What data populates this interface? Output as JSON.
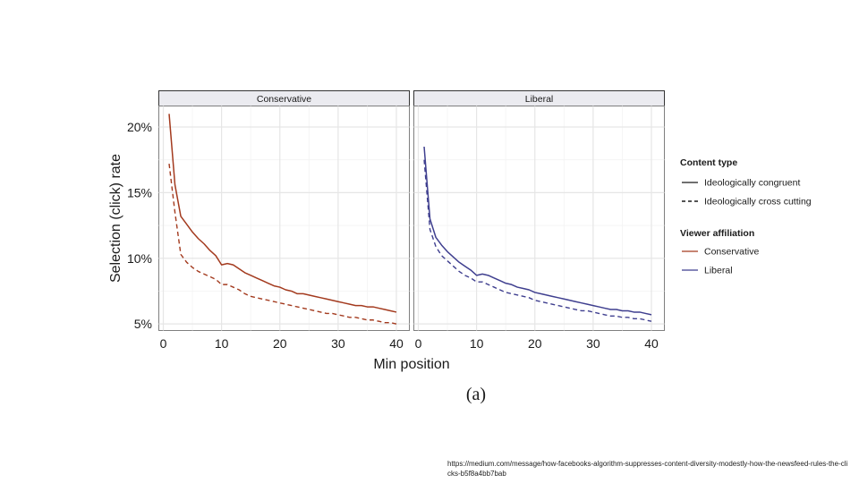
{
  "colors": {
    "conservative": "#a33a1e",
    "liberal": "#3f3f8f"
  },
  "caption": "(a)",
  "source_url": "https://medium.com/message/how-facebooks-algorithm-suppresses-content-diversity-modestly-how-the-newsfeed-rules-the-clicks-b5f8a4bb7bab",
  "chart_data": {
    "type": "line",
    "xlabel": "Min position",
    "ylabel": "Selection (click) rate",
    "xlim": [
      0,
      41
    ],
    "ylim": [
      4.5,
      21.6
    ],
    "x_ticks": [
      0,
      10,
      20,
      30,
      40
    ],
    "y_ticks": [
      5,
      10,
      15,
      20
    ],
    "y_tick_labels": [
      "5%",
      "10%",
      "15%",
      "20%"
    ],
    "grid": true,
    "legend_placement": "right",
    "legend": {
      "content_type_title": "Content type",
      "content_type_items": [
        "Ideologically congruent",
        "Ideologically cross cutting"
      ],
      "viewer_affiliation_title": "Viewer affiliation",
      "viewer_affiliation_items": [
        "Conservative",
        "Liberal"
      ]
    },
    "x": [
      1,
      2,
      3,
      4,
      5,
      6,
      7,
      8,
      9,
      10,
      11,
      12,
      13,
      14,
      15,
      16,
      17,
      18,
      19,
      20,
      21,
      22,
      23,
      24,
      25,
      26,
      27,
      28,
      29,
      30,
      31,
      32,
      33,
      34,
      35,
      36,
      37,
      38,
      39,
      40
    ],
    "panels": [
      {
        "title": "Conservative",
        "series": [
          {
            "name": "Ideologically congruent",
            "values": [
              21.0,
              15.6,
              13.2,
              12.6,
              12.0,
              11.5,
              11.1,
              10.6,
              10.2,
              9.5,
              9.6,
              9.5,
              9.2,
              8.9,
              8.7,
              8.5,
              8.3,
              8.1,
              7.9,
              7.8,
              7.6,
              7.5,
              7.3,
              7.3,
              7.2,
              7.1,
              7.0,
              6.9,
              6.8,
              6.7,
              6.6,
              6.5,
              6.4,
              6.4,
              6.3,
              6.3,
              6.2,
              6.1,
              6.0,
              5.9
            ]
          },
          {
            "name": "Ideologically cross cutting",
            "values": [
              17.2,
              13.5,
              10.3,
              9.7,
              9.3,
              9.0,
              8.8,
              8.6,
              8.4,
              8.0,
              8.0,
              7.8,
              7.6,
              7.3,
              7.1,
              7.0,
              6.9,
              6.8,
              6.7,
              6.6,
              6.5,
              6.4,
              6.3,
              6.2,
              6.1,
              6.0,
              5.9,
              5.8,
              5.8,
              5.7,
              5.6,
              5.5,
              5.5,
              5.4,
              5.3,
              5.3,
              5.2,
              5.1,
              5.1,
              5.0
            ]
          }
        ]
      },
      {
        "title": "Liberal",
        "series": [
          {
            "name": "Ideologically congruent",
            "values": [
              18.5,
              13.0,
              11.6,
              11.0,
              10.5,
              10.1,
              9.7,
              9.4,
              9.1,
              8.7,
              8.8,
              8.7,
              8.5,
              8.3,
              8.1,
              8.0,
              7.8,
              7.7,
              7.6,
              7.4,
              7.3,
              7.2,
              7.1,
              7.0,
              6.9,
              6.8,
              6.7,
              6.6,
              6.5,
              6.4,
              6.3,
              6.2,
              6.1,
              6.1,
              6.0,
              6.0,
              5.9,
              5.9,
              5.8,
              5.7
            ]
          },
          {
            "name": "Ideologically cross cutting",
            "values": [
              17.5,
              12.2,
              10.9,
              10.2,
              9.8,
              9.4,
              9.0,
              8.7,
              8.5,
              8.2,
              8.2,
              8.0,
              7.8,
              7.6,
              7.4,
              7.3,
              7.2,
              7.1,
              7.0,
              6.8,
              6.7,
              6.6,
              6.5,
              6.4,
              6.3,
              6.2,
              6.1,
              6.0,
              6.0,
              5.9,
              5.8,
              5.7,
              5.6,
              5.6,
              5.5,
              5.5,
              5.4,
              5.4,
              5.3,
              5.2
            ]
          }
        ]
      }
    ]
  }
}
